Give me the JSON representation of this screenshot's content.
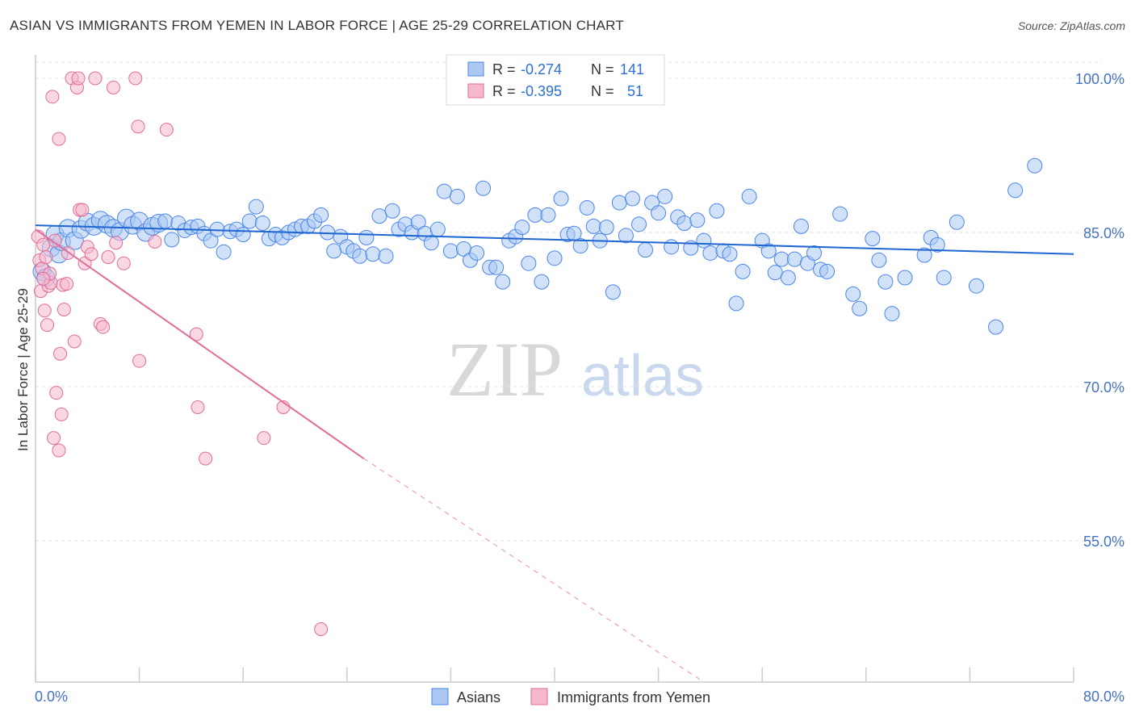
{
  "title": "ASIAN VS IMMIGRANTS FROM YEMEN IN LABOR FORCE | AGE 25-29 CORRELATION CHART",
  "source": "Source: ZipAtlas.com",
  "watermark": {
    "part1": "ZIP",
    "part2": "atlas"
  },
  "colors": {
    "blue": "#4a86e8",
    "blue_fill": "#aac8f2",
    "pink": "#e06c99",
    "pink_fill": "#f5b8cc",
    "label": "#4472c4"
  },
  "legend": {
    "rows": [
      {
        "r_label": "R =",
        "r_value": "-0.274",
        "n_label": "N =",
        "n_value": "141"
      },
      {
        "r_label": "R =",
        "r_value": "-0.395",
        "n_label": "N =",
        "n_value": "51"
      }
    ]
  },
  "bottom_legend": {
    "series1": "Asians",
    "series2": "Immigrants from Yemen"
  },
  "chart_data": {
    "type": "scatter",
    "title": "ASIAN VS IMMIGRANTS FROM YEMEN IN LABOR FORCE | AGE 25-29 CORRELATION CHART",
    "ylabel": "In Labor Force | Age 25-29",
    "xlim": [
      0,
      80
    ],
    "ylim": [
      40,
      102
    ],
    "x_tick_labels": [
      "0.0%",
      "80.0%"
    ],
    "y_tick_labels": [
      "100.0%",
      "85.0%",
      "70.0%",
      "55.0%"
    ],
    "y_ticks": [
      100,
      85,
      70,
      55
    ],
    "grid": true,
    "legend_position": "top-center",
    "series": [
      {
        "name": "Asians",
        "r": -0.274,
        "n": 141,
        "trend": {
          "x": [
            0,
            80
          ],
          "y": [
            85.7,
            82.9
          ]
        },
        "points": [
          [
            0.5,
            81.2
          ],
          [
            0.8,
            80.6
          ],
          [
            1.2,
            83.5
          ],
          [
            1.5,
            84.8
          ],
          [
            1.8,
            82.9
          ],
          [
            2.0,
            84.1
          ],
          [
            2.5,
            85.4
          ],
          [
            3.0,
            84.2
          ],
          [
            3.5,
            85.3
          ],
          [
            4.0,
            86.0
          ],
          [
            4.5,
            85.6
          ],
          [
            5.0,
            86.2
          ],
          [
            5.5,
            85.8
          ],
          [
            6.0,
            85.4
          ],
          [
            6.5,
            85.1
          ],
          [
            7.0,
            86.4
          ],
          [
            7.5,
            85.7
          ],
          [
            8.0,
            86.1
          ],
          [
            8.5,
            85.0
          ],
          [
            9.0,
            85.6
          ],
          [
            9.5,
            85.9
          ],
          [
            10.0,
            86.1
          ],
          [
            10.5,
            84.3
          ],
          [
            11.0,
            85.9
          ],
          [
            11.5,
            85.2
          ],
          [
            12.0,
            85.5
          ],
          [
            12.5,
            85.6
          ],
          [
            13.0,
            84.9
          ],
          [
            13.5,
            84.2
          ],
          [
            14.0,
            85.3
          ],
          [
            14.5,
            83.1
          ],
          [
            15.0,
            85.1
          ],
          [
            15.5,
            85.3
          ],
          [
            16.0,
            84.8
          ],
          [
            16.5,
            86.1
          ],
          [
            17.0,
            87.5
          ],
          [
            17.5,
            85.9
          ],
          [
            18.0,
            84.4
          ],
          [
            18.5,
            84.8
          ],
          [
            19.0,
            84.5
          ],
          [
            19.5,
            85.0
          ],
          [
            20.0,
            85.3
          ],
          [
            20.5,
            85.6
          ],
          [
            21.0,
            85.6
          ],
          [
            21.5,
            86.1
          ],
          [
            22.0,
            86.7
          ],
          [
            22.5,
            85.0
          ],
          [
            23.0,
            83.2
          ],
          [
            23.5,
            84.6
          ],
          [
            24.0,
            83.6
          ],
          [
            24.5,
            83.2
          ],
          [
            25.0,
            82.7
          ],
          [
            25.5,
            84.5
          ],
          [
            26.0,
            82.9
          ],
          [
            26.5,
            86.6
          ],
          [
            27.0,
            82.7
          ],
          [
            27.5,
            87.1
          ],
          [
            28.0,
            85.3
          ],
          [
            28.5,
            85.8
          ],
          [
            29.0,
            85.0
          ],
          [
            29.5,
            86.0
          ],
          [
            30.0,
            84.9
          ],
          [
            30.5,
            84.0
          ],
          [
            31.0,
            85.3
          ],
          [
            31.5,
            89.0
          ],
          [
            32.0,
            83.2
          ],
          [
            32.5,
            88.5
          ],
          [
            33.0,
            83.4
          ],
          [
            33.5,
            82.3
          ],
          [
            34.0,
            83.0
          ],
          [
            34.5,
            89.3
          ],
          [
            35.0,
            81.6
          ],
          [
            35.5,
            81.6
          ],
          [
            36.0,
            80.2
          ],
          [
            36.5,
            84.2
          ],
          [
            37.0,
            84.6
          ],
          [
            37.5,
            85.5
          ],
          [
            38.0,
            82.0
          ],
          [
            38.5,
            86.7
          ],
          [
            39.0,
            80.2
          ],
          [
            39.5,
            86.7
          ],
          [
            40.0,
            82.5
          ],
          [
            40.5,
            88.3
          ],
          [
            41.0,
            84.8
          ],
          [
            41.5,
            84.9
          ],
          [
            42.0,
            83.7
          ],
          [
            42.5,
            87.4
          ],
          [
            43.0,
            85.6
          ],
          [
            43.5,
            84.2
          ],
          [
            44.0,
            85.5
          ],
          [
            44.5,
            79.2
          ],
          [
            45.0,
            87.9
          ],
          [
            45.5,
            84.7
          ],
          [
            46.0,
            88.3
          ],
          [
            46.5,
            85.8
          ],
          [
            47.0,
            83.3
          ],
          [
            47.5,
            87.9
          ],
          [
            48.0,
            86.9
          ],
          [
            48.5,
            88.5
          ],
          [
            49.0,
            83.6
          ],
          [
            49.5,
            86.5
          ],
          [
            50.0,
            85.9
          ],
          [
            50.5,
            83.5
          ],
          [
            51.0,
            86.2
          ],
          [
            51.5,
            84.2
          ],
          [
            52.0,
            83.0
          ],
          [
            52.5,
            87.1
          ],
          [
            53.0,
            83.2
          ],
          [
            53.5,
            82.9
          ],
          [
            54.0,
            78.1
          ],
          [
            54.5,
            81.2
          ],
          [
            55.0,
            88.5
          ],
          [
            56.0,
            84.2
          ],
          [
            56.5,
            83.2
          ],
          [
            57.0,
            81.1
          ],
          [
            57.5,
            82.4
          ],
          [
            58.0,
            80.6
          ],
          [
            58.5,
            82.4
          ],
          [
            59.0,
            85.6
          ],
          [
            59.5,
            82.0
          ],
          [
            60.0,
            83.0
          ],
          [
            60.5,
            81.4
          ],
          [
            61.0,
            81.2
          ],
          [
            62.0,
            86.8
          ],
          [
            63.0,
            79.0
          ],
          [
            63.5,
            77.6
          ],
          [
            64.5,
            84.4
          ],
          [
            65.0,
            82.3
          ],
          [
            65.5,
            80.2
          ],
          [
            66.0,
            77.1
          ],
          [
            67.0,
            80.6
          ],
          [
            68.5,
            82.8
          ],
          [
            69.0,
            84.5
          ],
          [
            69.5,
            83.8
          ],
          [
            70.0,
            80.6
          ],
          [
            71.0,
            86.0
          ],
          [
            72.5,
            79.8
          ],
          [
            74.0,
            75.8
          ],
          [
            75.5,
            89.1
          ],
          [
            77.0,
            91.5
          ]
        ]
      },
      {
        "name": "Immigrants from Yemen",
        "r": -0.395,
        "n": 51,
        "trend": {
          "x": [
            0,
            25.3
          ],
          "y": [
            85.3,
            63.0
          ]
        },
        "trend_dashed": {
          "x": [
            25.3,
            51.5
          ],
          "y": [
            63.0,
            40.0
          ]
        },
        "points": [
          [
            0.2,
            84.6
          ],
          [
            0.3,
            82.3
          ],
          [
            0.4,
            79.3
          ],
          [
            0.5,
            81.5
          ],
          [
            0.6,
            83.8
          ],
          [
            0.7,
            77.4
          ],
          [
            0.8,
            82.6
          ],
          [
            1.0,
            79.8
          ],
          [
            1.2,
            80.1
          ],
          [
            1.3,
            98.2
          ],
          [
            1.5,
            84.2
          ],
          [
            1.6,
            69.4
          ],
          [
            1.8,
            94.1
          ],
          [
            1.9,
            73.2
          ],
          [
            2.0,
            67.3
          ],
          [
            2.1,
            79.9
          ],
          [
            2.2,
            77.5
          ],
          [
            2.5,
            83.0
          ],
          [
            2.8,
            100.0
          ],
          [
            3.0,
            74.4
          ],
          [
            3.2,
            99.1
          ],
          [
            3.3,
            100.0
          ],
          [
            3.4,
            87.2
          ],
          [
            3.6,
            87.2
          ],
          [
            3.8,
            82.0
          ],
          [
            4.0,
            83.6
          ],
          [
            4.3,
            82.9
          ],
          [
            4.6,
            100.0
          ],
          [
            5.0,
            76.1
          ],
          [
            5.2,
            75.8
          ],
          [
            5.6,
            82.6
          ],
          [
            6.0,
            99.1
          ],
          [
            6.2,
            84.0
          ],
          [
            6.8,
            82.0
          ],
          [
            7.7,
            100.0
          ],
          [
            7.9,
            95.3
          ],
          [
            8.0,
            72.5
          ],
          [
            9.2,
            84.1
          ],
          [
            10.1,
            95.0
          ],
          [
            12.4,
            75.1
          ],
          [
            12.5,
            68.0
          ],
          [
            13.1,
            63.0
          ],
          [
            17.6,
            65.0
          ],
          [
            19.1,
            68.0
          ],
          [
            22.0,
            46.4
          ],
          [
            1.4,
            65.0
          ],
          [
            1.8,
            63.8
          ],
          [
            0.9,
            76.0
          ],
          [
            2.4,
            80.0
          ],
          [
            1.1,
            81.0
          ],
          [
            0.6,
            80.5
          ]
        ]
      }
    ]
  }
}
